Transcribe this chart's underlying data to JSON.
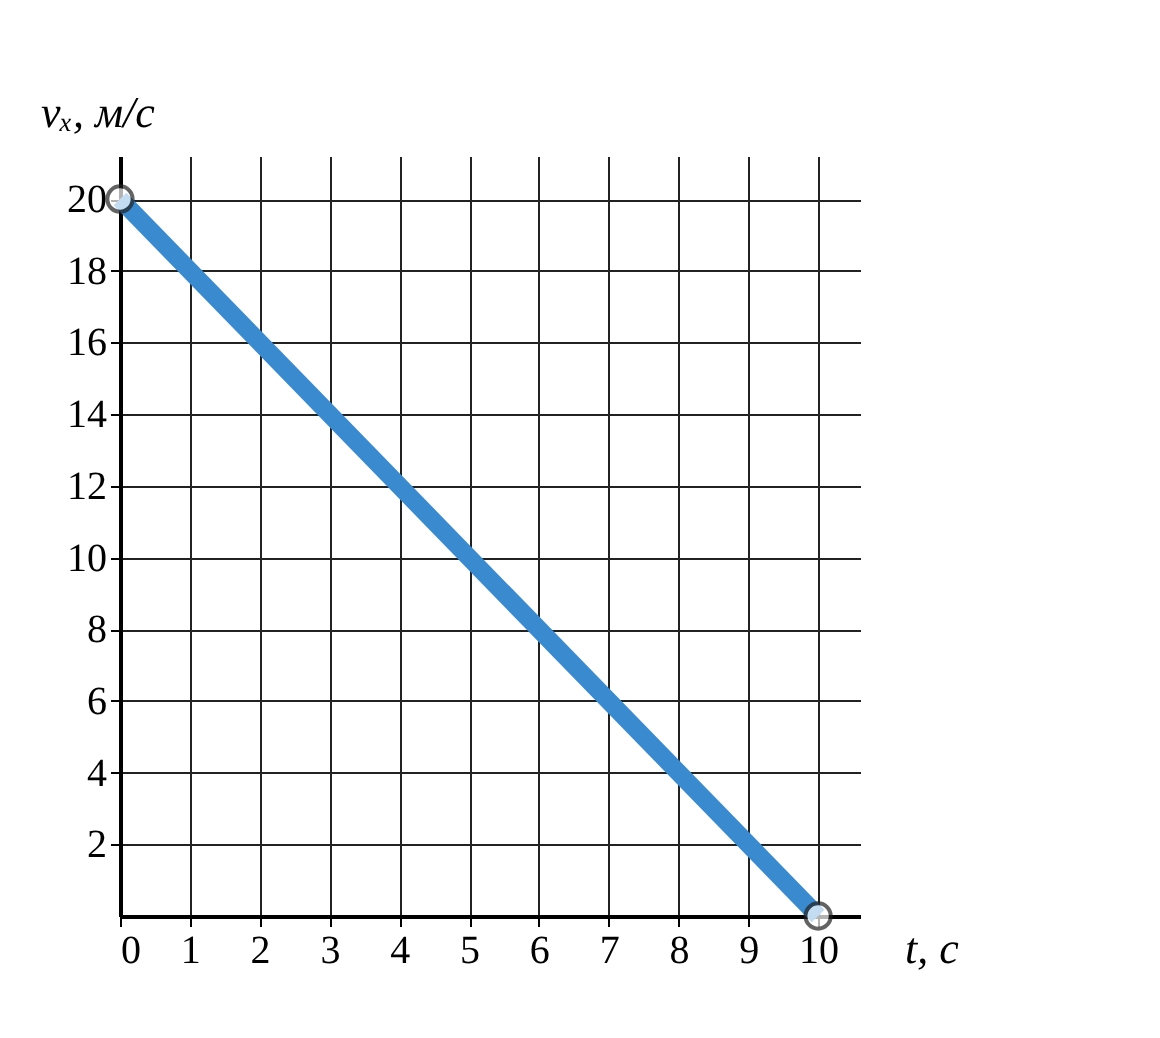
{
  "chart_data": {
    "type": "line",
    "xlabel": "t, с",
    "ylabel": "vₓ, м/с",
    "x": [
      0,
      10
    ],
    "series": [
      {
        "color": "#3a8ad0",
        "values": [
          20,
          0
        ]
      }
    ],
    "xlim": [
      0,
      10.6
    ],
    "ylim": [
      0,
      21.2
    ],
    "xticks": [
      0,
      1,
      2,
      3,
      4,
      5,
      6,
      7,
      8,
      9,
      10
    ],
    "yticks": [
      2,
      4,
      6,
      8,
      10,
      12,
      14,
      16,
      18,
      20
    ],
    "grid": true,
    "marker": "circle",
    "line_style": "solid"
  }
}
